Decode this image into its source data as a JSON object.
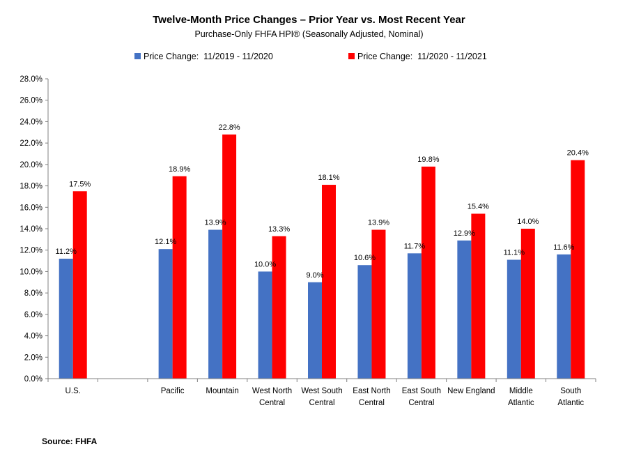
{
  "chart_data": {
    "type": "bar",
    "title": "Twelve-Month Price Changes – Prior Year vs. Most Recent Year",
    "subtitle": "Purchase-Only FHFA HPI® (Seasonally Adjusted, Nominal)",
    "categories": [
      [
        "U.S."
      ],
      [],
      [
        "Pacific"
      ],
      [
        "Mountain"
      ],
      [
        "West North",
        "Central"
      ],
      [
        "West South",
        "Central"
      ],
      [
        "East North",
        "Central"
      ],
      [
        "East South",
        "Central"
      ],
      [
        "New England"
      ],
      [
        "Middle",
        "Atlantic"
      ],
      [
        "South",
        "Atlantic"
      ]
    ],
    "series": [
      {
        "name": "Price Change:  11/2019 - 11/2020",
        "color": "#4472C4",
        "values": [
          11.2,
          null,
          12.1,
          13.9,
          10.0,
          9.0,
          10.6,
          11.7,
          12.9,
          11.1,
          11.6
        ],
        "labels": [
          "11.2%",
          "",
          "12.1%",
          "13.9%",
          "10.0%",
          "9.0%",
          "10.6%",
          "11.7%",
          "12.9%",
          "11.1%",
          "11.6%"
        ]
      },
      {
        "name": "Price Change:  11/2020 - 11/2021",
        "color": "#FF0000",
        "values": [
          17.5,
          null,
          18.9,
          22.8,
          13.3,
          18.1,
          13.9,
          19.8,
          15.4,
          14.0,
          20.4
        ],
        "labels": [
          "17.5%",
          "",
          "18.9%",
          "22.8%",
          "13.3%",
          "18.1%",
          "13.9%",
          "19.8%",
          "15.4%",
          "14.0%",
          "20.4%"
        ]
      }
    ],
    "ylim": [
      0,
      28
    ],
    "yticks": [
      "0.0%",
      "2.0%",
      "4.0%",
      "6.0%",
      "8.0%",
      "10.0%",
      "12.0%",
      "14.0%",
      "16.0%",
      "18.0%",
      "20.0%",
      "22.0%",
      "24.0%",
      "26.0%",
      "28.0%"
    ],
    "grid": false,
    "legend_position": "top"
  },
  "source": "Source: FHFA"
}
